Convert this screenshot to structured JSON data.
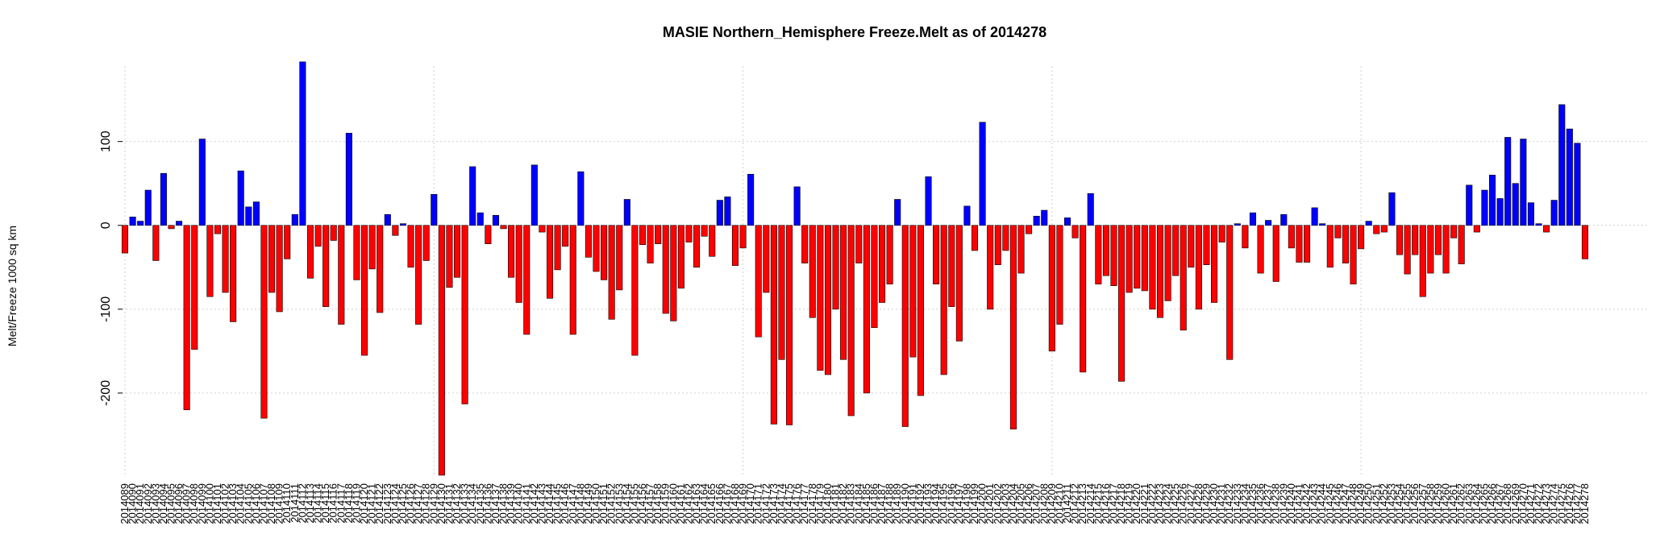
{
  "chart_data": {
    "type": "bar",
    "title": "MASIE Northern_Hemisphere Freeze.Melt as of 2014278",
    "xlabel": "",
    "ylabel": "Melt/Freeze 1000 sq km",
    "ylim": [
      -300,
      190
    ],
    "yticks": [
      -200,
      -100,
      0,
      100
    ],
    "ytick_labels": [
      "-200",
      "-100",
      "0",
      "100"
    ],
    "grid": true,
    "colors": {
      "positive": "#0000ff",
      "negative": "#ff0000",
      "grid": "#cfcfcf"
    },
    "first_day": 2014089,
    "categories": [
      "2014089",
      "2014090",
      "2014091",
      "2014092",
      "2014093",
      "2014094",
      "2014095",
      "2014096",
      "2014097",
      "2014098",
      "2014099",
      "2014100",
      "2014101",
      "2014102",
      "2014103",
      "2014104",
      "2014105",
      "2014106",
      "2014107",
      "2014108",
      "2014109",
      "2014110",
      "2014111",
      "2014112",
      "2014113",
      "2014114",
      "2014115",
      "2014116",
      "2014117",
      "2014118",
      "2014119",
      "2014120",
      "2014121",
      "2014122",
      "2014123",
      "2014124",
      "2014125",
      "2014126",
      "2014127",
      "2014128",
      "2014129",
      "2014130",
      "2014131",
      "2014132",
      "2014133",
      "2014134",
      "2014135",
      "2014136",
      "2014137",
      "2014138",
      "2014139",
      "2014140",
      "2014141",
      "2014142",
      "2014143",
      "2014144",
      "2014145",
      "2014146",
      "2014147",
      "2014148",
      "2014149",
      "2014150",
      "2014151",
      "2014152",
      "2014153",
      "2014154",
      "2014155",
      "2014156",
      "2014157",
      "2014158",
      "2014159",
      "2014160",
      "2014161",
      "2014162",
      "2014163",
      "2014164",
      "2014165",
      "2014166",
      "2014167",
      "2014168",
      "2014169",
      "2014170",
      "2014171",
      "2014172",
      "2014173",
      "2014174",
      "2014175",
      "2014176",
      "2014177",
      "2014178",
      "2014179",
      "2014180",
      "2014181",
      "2014182",
      "2014183",
      "2014184",
      "2014185",
      "2014186",
      "2014187",
      "2014188",
      "2014189",
      "2014190",
      "2014191",
      "2014192",
      "2014193",
      "2014194",
      "2014195",
      "2014196",
      "2014197",
      "2014198",
      "2014199",
      "2014200",
      "2014201",
      "2014202",
      "2014203",
      "2014204",
      "2014205",
      "2014206",
      "2014207",
      "2014208",
      "2014209",
      "2014210",
      "2014211",
      "2014212",
      "2014213",
      "2014214",
      "2014215",
      "2014216",
      "2014217",
      "2014218",
      "2014219",
      "2014220",
      "2014221",
      "2014222",
      "2014223",
      "2014224",
      "2014225",
      "2014226",
      "2014227",
      "2014228",
      "2014229",
      "2014230",
      "2014231",
      "2014232",
      "2014233",
      "2014234",
      "2014235",
      "2014236",
      "2014237",
      "2014238",
      "2014239",
      "2014240",
      "2014241",
      "2014242",
      "2014243",
      "2014244",
      "2014245",
      "2014246",
      "2014247",
      "2014248",
      "2014249",
      "2014250",
      "2014251",
      "2014252",
      "2014253",
      "2014254",
      "2014255",
      "2014256",
      "2014257",
      "2014258",
      "2014259",
      "2014260",
      "2014261",
      "2014262",
      "2014263",
      "2014264",
      "2014265",
      "2014266",
      "2014267",
      "2014268",
      "2014269",
      "2014270",
      "2014271",
      "2014272",
      "2014273",
      "2014274",
      "2014275",
      "2014276",
      "2014277",
      "2014278"
    ],
    "values": [
      -33,
      10,
      5,
      42,
      -42,
      62,
      -4,
      5,
      -220,
      -148,
      103,
      -85,
      -10,
      -80,
      -115,
      65,
      22,
      28,
      -230,
      -80,
      -103,
      -40,
      13,
      195,
      -63,
      -25,
      -97,
      -18,
      -118,
      110,
      -65,
      -155,
      -52,
      -104,
      13,
      -12,
      2,
      -50,
      -118,
      -42,
      37,
      -298,
      -74,
      -62,
      -213,
      70,
      15,
      -22,
      12,
      -4,
      -62,
      -92,
      -130,
      72,
      -8,
      -87,
      -53,
      -25,
      -130,
      64,
      -38,
      -55,
      -65,
      -112,
      -77,
      31,
      -155,
      -23,
      -45,
      -22,
      -105,
      -114,
      -75,
      -20,
      -50,
      -13,
      -37,
      30,
      34,
      -48,
      -27,
      61,
      -133,
      -80,
      -237,
      -160,
      -238,
      46,
      -45,
      -110,
      -173,
      -178,
      -100,
      -160,
      -227,
      -45,
      -200,
      -122,
      -92,
      -70,
      31,
      -240,
      -157,
      -203,
      58,
      -70,
      -178,
      -97,
      -138,
      23,
      -30,
      123,
      -100,
      -47,
      -30,
      -243,
      -57,
      -10,
      11,
      18,
      -150,
      -118,
      9,
      -15,
      -175,
      38,
      -70,
      -60,
      -72,
      -186,
      -80,
      -75,
      -78,
      -100,
      -110,
      -90,
      -60,
      -125,
      -50,
      -100,
      -47,
      -92,
      -20,
      -160,
      2,
      -27,
      15,
      -57,
      6,
      -67,
      13,
      -27,
      -44,
      -44,
      21,
      2,
      -50,
      -15,
      -45,
      -70,
      -28,
      5,
      -10,
      -8,
      39,
      -35,
      -58,
      -35,
      -85,
      -57,
      -35,
      -57,
      -15,
      -46,
      48,
      -8,
      42,
      60,
      32,
      105,
      50,
      103,
      27,
      2,
      -8,
      30,
      144,
      115,
      98,
      -40
    ]
  }
}
